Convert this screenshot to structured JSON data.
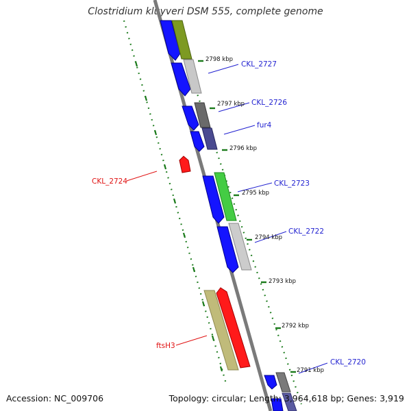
{
  "title": "Clostridium kluyveri DSM 555, complete genome",
  "footer": {
    "accession": "Accession: NC_009706",
    "summary": "Topology: circular; Length: 3,964,618 bp; Genes: 3,919"
  },
  "colors": {
    "forward_strand": "#1414ff",
    "backbone": "#7a7a7a",
    "ticks": "#1a7a1a",
    "label_blue": "#1f1fd0",
    "label_red": "#e01010"
  },
  "kbp_labels": [
    "2798 kbp",
    "2797 kbp",
    "2796 kbp",
    "2795 kbp",
    "2794 kbp",
    "2793 kbp",
    "2792 kbp",
    "2791 kbp"
  ],
  "gene_labels": [
    {
      "text": "CKL_2727",
      "color": "blue"
    },
    {
      "text": "CKL_2726",
      "color": "blue"
    },
    {
      "text": "fur4",
      "color": "blue"
    },
    {
      "text": "CKL_2723",
      "color": "blue"
    },
    {
      "text": "CKL_2722",
      "color": "blue"
    },
    {
      "text": "CKL_2720",
      "color": "blue"
    },
    {
      "text": "CKL_2724",
      "color": "red"
    },
    {
      "text": "ftsH3",
      "color": "red"
    }
  ]
}
